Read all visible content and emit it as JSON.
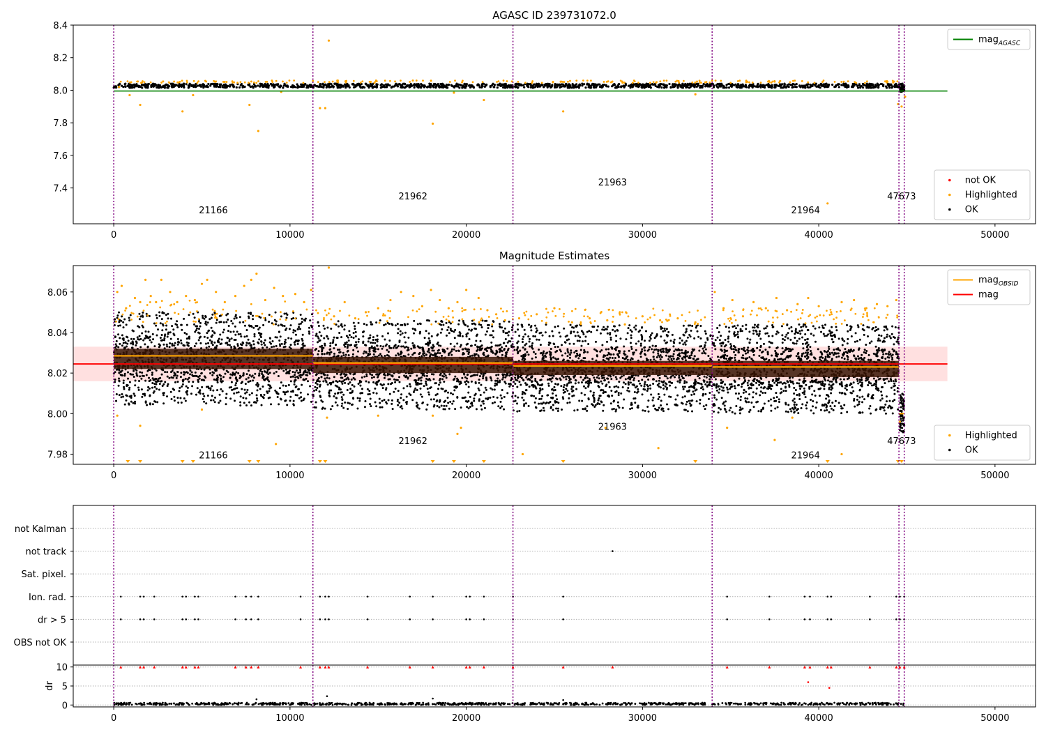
{
  "chart_data": [
    {
      "type": "scatter",
      "title": "AGASC ID 239731072.0",
      "xlim": [
        -2300,
        52300
      ],
      "ylim": [
        7.18,
        8.4
      ],
      "xticks": [
        0,
        10000,
        20000,
        30000,
        40000,
        50000
      ],
      "yticks": [
        7.4,
        7.6,
        7.8,
        8.0,
        8.2,
        8.4
      ],
      "ytick_labels": [
        "7.4",
        "7.6",
        "7.8",
        "8.0",
        "8.2",
        "8.4"
      ],
      "obs_boundaries": [
        0,
        11300,
        22650,
        33950,
        44550,
        44850
      ],
      "obs_labels": [
        {
          "text": "21166",
          "x": 5650,
          "y": 7.245
        },
        {
          "text": "21962",
          "x": 16975,
          "y": 7.33
        },
        {
          "text": "21963",
          "x": 28300,
          "y": 7.415
        },
        {
          "text": "21964",
          "x": 39250,
          "y": 7.245
        },
        {
          "text": "47673",
          "x": 44700,
          "y": 7.33
        }
      ],
      "lines": [
        {
          "name": "mag_AGASC",
          "x": [
            0,
            47300
          ],
          "y": [
            7.995,
            7.995
          ],
          "color": "#008000"
        }
      ],
      "ok_band": {
        "x": [
          0,
          44850
        ],
        "y_low": 8.015,
        "y_high": 8.04,
        "color": "#000000"
      },
      "highlighted_points": {
        "x": [
          300,
          900,
          1500,
          3900,
          4500,
          7700,
          8200,
          9500,
          11700,
          12000,
          12200,
          18100,
          19300,
          21000,
          25500,
          33000,
          40500,
          44500,
          44700,
          44900
        ],
        "y": [
          8.02,
          7.97,
          7.91,
          7.87,
          7.97,
          7.91,
          7.75,
          7.99,
          7.89,
          7.89,
          8.305,
          7.795,
          7.985,
          7.94,
          7.87,
          7.975,
          7.305,
          7.915,
          7.9,
          7.96
        ],
        "color": "#FFA500"
      },
      "legends": [
        {
          "position": "upper right",
          "entries": [
            {
              "label": "mag",
              "subscript": "AGASC",
              "style": "line",
              "color": "#008000"
            }
          ]
        },
        {
          "position": "lower right",
          "entries": [
            {
              "label": "not OK",
              "style": "point",
              "color": "#FF0000"
            },
            {
              "label": "Highlighted",
              "style": "point",
              "color": "#FFA500"
            },
            {
              "label": "OK",
              "style": "point",
              "color": "#000000"
            }
          ]
        }
      ]
    },
    {
      "type": "scatter",
      "title": "Magnitude Estimates",
      "xlim": [
        -2300,
        52300
      ],
      "ylim": [
        7.975,
        8.073
      ],
      "xticks": [
        0,
        10000,
        20000,
        30000,
        40000,
        50000
      ],
      "yticks": [
        7.98,
        8.0,
        8.02,
        8.04,
        8.06
      ],
      "ytick_labels": [
        "7.98",
        "8.00",
        "8.02",
        "8.04",
        "8.06"
      ],
      "obs_boundaries": [
        0,
        11300,
        22650,
        33950,
        44550,
        44850
      ],
      "obs_labels": [
        {
          "text": "21166",
          "x": 5650,
          "y": 7.978
        },
        {
          "text": "21962",
          "x": 16975,
          "y": 7.985
        },
        {
          "text": "21963",
          "x": 28300,
          "y": 7.992
        },
        {
          "text": "21964",
          "x": 39250,
          "y": 7.978
        },
        {
          "text": "47673",
          "x": 44700,
          "y": 7.985
        }
      ],
      "mag": {
        "value": 8.0245,
        "band": [
          8.016,
          8.033
        ],
        "x": [
          -2300,
          47300
        ],
        "color": "#FF0000"
      },
      "mag_obsid": [
        {
          "x": [
            0,
            11300
          ],
          "y": 8.0285
        },
        {
          "x": [
            11300,
            22650
          ],
          "y": 8.025
        },
        {
          "x": [
            22650,
            33950
          ],
          "y": 8.0235
        },
        {
          "x": [
            33950,
            44550
          ],
          "y": 8.023
        },
        {
          "x": [
            44550,
            44850
          ],
          "y": 8.0
        }
      ],
      "ok_bands": [
        {
          "x": [
            0,
            11300
          ],
          "y_low": 8.016,
          "y_high": 8.038
        },
        {
          "x": [
            11300,
            22650
          ],
          "y_low": 8.014,
          "y_high": 8.034
        },
        {
          "x": [
            22650,
            33950
          ],
          "y_low": 8.013,
          "y_high": 8.032
        },
        {
          "x": [
            33950,
            44550
          ],
          "y_low": 8.012,
          "y_high": 8.032
        }
      ],
      "highlighted_points": {
        "x": [
          200,
          450,
          700,
          1200,
          1500,
          1800,
          2100,
          2400,
          2700,
          3200,
          3600,
          4100,
          4600,
          5000,
          5300,
          5800,
          6300,
          6900,
          7400,
          7800,
          8100,
          8600,
          9100,
          9600,
          10300,
          10800,
          11200,
          12200,
          12500,
          13100,
          13700,
          14300,
          15000,
          15700,
          16300,
          17000,
          17500,
          18000,
          18500,
          19000,
          19500,
          20000,
          20700,
          21200,
          21700,
          22200,
          23000,
          24000,
          25000,
          26000,
          27000,
          28000,
          29000,
          30000,
          31000,
          32000,
          33000,
          34100,
          34600,
          35100,
          35700,
          36300,
          37000,
          37600,
          38200,
          38800,
          39400,
          40000,
          40700,
          41300,
          42000,
          42700,
          43300,
          43900,
          44400,
          200,
          1500,
          5000,
          9200,
          12100,
          15000,
          18100,
          19500,
          19700,
          23200,
          27900,
          30900,
          34800,
          37500,
          38500,
          41300,
          44600
        ],
        "y": [
          8.06,
          8.063,
          8.052,
          8.057,
          8.055,
          8.066,
          8.058,
          8.055,
          8.066,
          8.06,
          8.055,
          8.058,
          8.056,
          8.064,
          8.066,
          8.06,
          8.055,
          8.058,
          8.063,
          8.066,
          8.069,
          8.056,
          8.062,
          8.058,
          8.059,
          8.055,
          8.061,
          8.072,
          8.048,
          8.055,
          8.047,
          8.05,
          8.052,
          8.056,
          8.06,
          8.058,
          8.053,
          8.061,
          8.056,
          8.052,
          8.055,
          8.061,
          8.057,
          8.051,
          8.049,
          8.046,
          8.047,
          8.049,
          8.052,
          8.045,
          8.047,
          8.046,
          8.044,
          8.048,
          8.046,
          8.047,
          8.045,
          8.06,
          8.052,
          8.056,
          8.048,
          8.055,
          8.052,
          8.057,
          8.051,
          8.054,
          8.057,
          8.053,
          8.05,
          8.055,
          8.056,
          8.052,
          8.054,
          8.053,
          8.056,
          7.999,
          7.994,
          8.002,
          7.985,
          7.998,
          7.999,
          7.999,
          7.99,
          7.993,
          7.98,
          7.993,
          7.983,
          7.993,
          7.987,
          7.998,
          7.98,
          7.996
        ],
        "color": "#FFA500"
      },
      "offscale_points_x": [
        800,
        1500,
        3900,
        4500,
        7700,
        8200,
        11700,
        12000,
        18100,
        19300,
        21000,
        25500,
        33000,
        40500,
        44500,
        44700
      ],
      "legends": [
        {
          "position": "upper right",
          "entries": [
            {
              "label": "mag",
              "subscript": "OBSID",
              "style": "line",
              "color": "#FFA500"
            },
            {
              "label": "mag",
              "style": "line",
              "color": "#FF0000"
            }
          ]
        },
        {
          "position": "lower right",
          "entries": [
            {
              "label": "Highlighted",
              "style": "point",
              "color": "#FFA500"
            },
            {
              "label": "OK",
              "style": "point",
              "color": "#000000"
            }
          ]
        }
      ]
    },
    {
      "type": "scatter",
      "xlim": [
        -2300,
        52300
      ],
      "categories": [
        "not Kalman",
        "not track",
        "Sat. pixel.",
        "Ion. rad.",
        "dr > 5",
        "OBS not OK"
      ],
      "obs_boundaries": [
        0,
        11300,
        22650,
        33950,
        44550,
        44850
      ],
      "flag_points": [
        {
          "category": "not track",
          "x": [
            28300
          ]
        },
        {
          "category": "Ion. rad.",
          "x": [
            400,
            1500,
            1700,
            2300,
            3900,
            4100,
            4600,
            4800,
            6900,
            7500,
            7800,
            8200,
            10600,
            11700,
            12000,
            12200,
            14400,
            16800,
            18100,
            20000,
            20200,
            21000,
            22650,
            25500,
            34800,
            37200,
            39200,
            39500,
            40500,
            40700,
            42900,
            44400,
            44600,
            44850
          ]
        },
        {
          "category": "dr > 5",
          "x": [
            400,
            1500,
            1700,
            2300,
            3900,
            4100,
            4600,
            4800,
            6900,
            7500,
            7800,
            8200,
            10600,
            11700,
            12000,
            12200,
            14400,
            16800,
            18100,
            20000,
            20200,
            21000,
            22650,
            25500,
            34800,
            37200,
            39200,
            39500,
            40500,
            40700,
            42900,
            44400,
            44600,
            44850
          ]
        }
      ]
    },
    {
      "type": "scatter",
      "xlim": [
        -2300,
        52300
      ],
      "ylim": [
        -0.5,
        10.5
      ],
      "ylabel": "dr",
      "xticks": [
        0,
        10000,
        20000,
        30000,
        40000,
        50000
      ],
      "yticks": [
        0,
        5,
        10
      ],
      "ytick_labels": [
        "0",
        "5",
        "10"
      ],
      "obs_boundaries": [
        0,
        11300,
        22650,
        33950,
        44550,
        44850
      ],
      "clipped_points": {
        "x": [
          400,
          1500,
          1700,
          2300,
          3900,
          4100,
          4600,
          4800,
          6900,
          7500,
          7800,
          8200,
          10600,
          11700,
          12000,
          12200,
          14400,
          16800,
          18100,
          20000,
          20200,
          21000,
          22650,
          25500,
          28300,
          34800,
          37200,
          39200,
          39500,
          40500,
          40700,
          42900,
          44400,
          44600,
          44850
        ],
        "y": 10,
        "color": "#FF0000"
      },
      "outlier_points": {
        "x": [
          39400,
          40600
        ],
        "y": [
          6,
          4.5
        ],
        "color": "#FF0000"
      },
      "ok_points": {
        "x": [
          8100,
          12100,
          18100,
          25500
        ],
        "y": [
          1.5,
          2.3,
          1.7,
          1.3
        ],
        "color": "#000000"
      },
      "ok_band": {
        "x": [
          0,
          44850
        ],
        "y_low": 0,
        "y_high": 0.6,
        "color": "#000000"
      }
    }
  ]
}
